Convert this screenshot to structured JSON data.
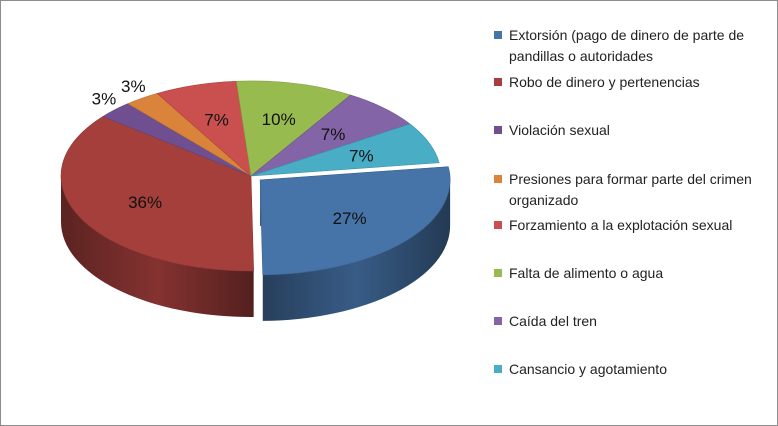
{
  "chart_data": {
    "type": "pie",
    "style": "3d-exploded",
    "categories": [
      "Extorsión (pago de dinero de parte de pandillas o autoridades",
      "Robo de dinero y pertenencias",
      "Violación sexual",
      "Presiones para formar parte del crimen organizado",
      "Forzamiento a la explotación sexual",
      "Falta de alimento o agua",
      "Caída del tren",
      "Cansancio y agotamiento"
    ],
    "values": [
      27,
      36,
      3,
      3,
      7,
      10,
      7,
      7
    ],
    "value_labels": [
      "27%",
      "36%",
      "3%",
      "3%",
      "7%",
      "10%",
      "7%",
      "7%"
    ],
    "colors": [
      "#4673a8",
      "#a53f3c",
      "#6f4f8f",
      "#d9843a",
      "#c9504e",
      "#98bb4f",
      "#8364a6",
      "#49adc6"
    ],
    "legend_position": "right",
    "title": ""
  }
}
